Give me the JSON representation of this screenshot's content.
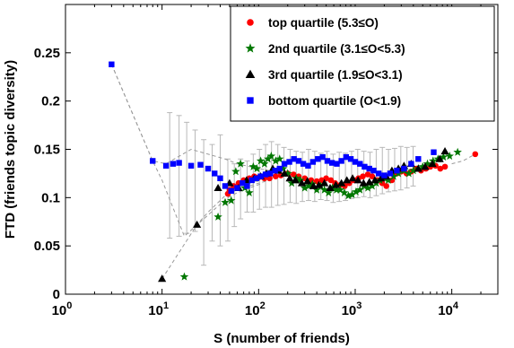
{
  "chart_data": {
    "type": "scatter",
    "xlabel": "S (number of friends)",
    "ylabel": "FTD (friends topic diversity)",
    "xscale": "log",
    "xlim": [
      1,
      30000
    ],
    "ylim": [
      0,
      0.3
    ],
    "x_ticks": [
      {
        "value": 1,
        "base": "10",
        "exp": "0"
      },
      {
        "value": 10,
        "base": "10",
        "exp": "1"
      },
      {
        "value": 100,
        "base": "10",
        "exp": "2"
      },
      {
        "value": 1000,
        "base": "10",
        "exp": "3"
      },
      {
        "value": 10000,
        "base": "10",
        "exp": "4"
      }
    ],
    "y_ticks": [
      {
        "value": 0,
        "label": "0"
      },
      {
        "value": 0.05,
        "label": "0.05"
      },
      {
        "value": 0.1,
        "label": "0.1"
      },
      {
        "value": 0.15,
        "label": "0.15"
      },
      {
        "value": 0.2,
        "label": "0.2"
      },
      {
        "value": 0.25,
        "label": "0.25"
      }
    ],
    "legend_position": "top-right",
    "series": [
      {
        "name": "top quartile (5.3≤O)",
        "marker": "circle",
        "color": "#ff0000",
        "x": [
          48,
          50,
          55,
          62,
          70,
          80,
          90,
          100,
          115,
          130,
          150,
          170,
          200,
          230,
          260,
          300,
          350,
          400,
          450,
          500,
          560,
          620,
          700,
          780,
          870,
          970,
          1080,
          1200,
          1350,
          1500,
          1700,
          1900,
          2100,
          2400,
          2700,
          3000,
          3400,
          3800,
          4300,
          4800,
          5400,
          6000,
          6800,
          7600,
          8500,
          17500
        ],
        "y": [
          0.104,
          0.108,
          0.112,
          0.115,
          0.118,
          0.12,
          0.122,
          0.121,
          0.12,
          0.12,
          0.122,
          0.123,
          0.125,
          0.124,
          0.122,
          0.12,
          0.118,
          0.117,
          0.118,
          0.12,
          0.118,
          0.115,
          0.113,
          0.112,
          0.115,
          0.118,
          0.12,
          0.122,
          0.124,
          0.122,
          0.118,
          0.115,
          0.112,
          0.118,
          0.125,
          0.127,
          0.125,
          0.127,
          0.13,
          0.128,
          0.13,
          0.132,
          0.133,
          0.13,
          0.132,
          0.145
        ]
      },
      {
        "name": "2nd quartile (3.1≤O<5.3)",
        "marker": "star",
        "color": "#007700",
        "x": [
          17,
          38,
          45,
          52,
          58,
          65,
          72,
          80,
          88,
          96,
          105,
          115,
          125,
          135,
          150,
          165,
          180,
          200,
          220,
          245,
          270,
          300,
          330,
          360,
          400,
          440,
          480,
          530,
          580,
          640,
          700,
          770,
          850,
          930,
          1020,
          1120,
          1230,
          1350,
          1500,
          1650,
          1800,
          2000,
          2200,
          2500,
          2800,
          3200,
          3600,
          4000,
          4500,
          5000,
          5600,
          6400,
          7200,
          8200,
          9500,
          11500
        ],
        "y": [
          0.018,
          0.08,
          0.095,
          0.097,
          0.127,
          0.135,
          0.11,
          0.105,
          0.132,
          0.13,
          0.138,
          0.135,
          0.14,
          0.143,
          0.138,
          0.14,
          0.13,
          0.125,
          0.115,
          0.12,
          0.118,
          0.11,
          0.112,
          0.114,
          0.108,
          0.112,
          0.108,
          0.105,
          0.11,
          0.108,
          0.108,
          0.105,
          0.102,
          0.103,
          0.106,
          0.108,
          0.112,
          0.11,
          0.112,
          0.115,
          0.118,
          0.12,
          0.118,
          0.122,
          0.125,
          0.128,
          0.125,
          0.128,
          0.13,
          0.132,
          0.135,
          0.138,
          0.14,
          0.142,
          0.143,
          0.147
        ]
      },
      {
        "name": "3rd quartile (1.9≤O<3.1)",
        "marker": "triangle",
        "color": "#000000",
        "x": [
          10,
          23,
          38,
          50,
          62,
          75,
          90,
          105,
          120,
          140,
          160,
          185,
          210,
          240,
          280,
          320,
          370,
          420,
          480,
          550,
          630,
          720,
          820,
          940,
          1070,
          1220,
          1400,
          1600,
          1850,
          2100,
          2400,
          2800,
          3200,
          3800,
          4500,
          5300,
          6300,
          7500,
          8500
        ],
        "y": [
          0.016,
          0.072,
          0.11,
          0.115,
          0.11,
          0.118,
          0.12,
          0.122,
          0.125,
          0.13,
          0.128,
          0.125,
          0.12,
          0.118,
          0.115,
          0.117,
          0.112,
          0.113,
          0.115,
          0.11,
          0.113,
          0.115,
          0.118,
          0.12,
          0.118,
          0.115,
          0.116,
          0.118,
          0.12,
          0.122,
          0.128,
          0.13,
          0.133,
          0.135,
          0.13,
          0.132,
          0.135,
          0.14,
          0.148
        ]
      },
      {
        "name": "bottom quartile (O<1.9)",
        "marker": "square",
        "color": "#0000ff",
        "x": [
          3,
          8,
          11,
          13,
          15,
          20,
          25,
          30,
          35,
          40,
          45,
          52,
          60,
          68,
          76,
          85,
          95,
          105,
          118,
          132,
          148,
          165,
          185,
          208,
          232,
          260,
          290,
          325,
          365,
          410,
          460,
          515,
          575,
          645,
          720,
          805,
          900,
          1000,
          1120,
          1250,
          1400,
          1550,
          1750,
          2000,
          2300,
          2700,
          3200,
          3800,
          4500,
          6500
        ],
        "y": [
          0.238,
          0.138,
          0.133,
          0.135,
          0.136,
          0.133,
          0.134,
          0.13,
          0.125,
          0.12,
          0.112,
          0.107,
          0.11,
          0.115,
          0.112,
          0.118,
          0.12,
          0.122,
          0.124,
          0.125,
          0.128,
          0.13,
          0.135,
          0.137,
          0.14,
          0.138,
          0.135,
          0.133,
          0.137,
          0.14,
          0.142,
          0.138,
          0.136,
          0.135,
          0.138,
          0.142,
          0.14,
          0.137,
          0.135,
          0.132,
          0.13,
          0.128,
          0.125,
          0.123,
          0.125,
          0.128,
          0.13,
          0.135,
          0.14,
          0.147
        ]
      }
    ],
    "error_bars": [
      {
        "x": 12,
        "low": 0.058,
        "high": 0.188
      },
      {
        "x": 15,
        "low": 0.06,
        "high": 0.185
      },
      {
        "x": 18,
        "low": 0.063,
        "high": 0.178
      },
      {
        "x": 22,
        "low": 0.065,
        "high": 0.17
      },
      {
        "x": 27,
        "low": 0.03,
        "high": 0.16
      },
      {
        "x": 33,
        "low": 0.055,
        "high": 0.155
      },
      {
        "x": 40,
        "low": 0.05,
        "high": 0.165
      },
      {
        "x": 48,
        "low": 0.055,
        "high": 0.14
      },
      {
        "x": 56,
        "low": 0.07,
        "high": 0.135
      },
      {
        "x": 65,
        "low": 0.078,
        "high": 0.14
      },
      {
        "x": 76,
        "low": 0.085,
        "high": 0.138
      },
      {
        "x": 88,
        "low": 0.085,
        "high": 0.145
      },
      {
        "x": 102,
        "low": 0.088,
        "high": 0.15
      },
      {
        "x": 118,
        "low": 0.09,
        "high": 0.155
      },
      {
        "x": 136,
        "low": 0.09,
        "high": 0.158
      },
      {
        "x": 158,
        "low": 0.092,
        "high": 0.155
      },
      {
        "x": 183,
        "low": 0.093,
        "high": 0.152
      },
      {
        "x": 212,
        "low": 0.095,
        "high": 0.15
      },
      {
        "x": 245,
        "low": 0.094,
        "high": 0.148
      },
      {
        "x": 284,
        "low": 0.096,
        "high": 0.147
      },
      {
        "x": 329,
        "low": 0.097,
        "high": 0.15
      },
      {
        "x": 381,
        "low": 0.096,
        "high": 0.148
      },
      {
        "x": 441,
        "low": 0.098,
        "high": 0.146
      },
      {
        "x": 510,
        "low": 0.097,
        "high": 0.148
      },
      {
        "x": 591,
        "low": 0.095,
        "high": 0.145
      },
      {
        "x": 684,
        "low": 0.096,
        "high": 0.147
      },
      {
        "x": 792,
        "low": 0.097,
        "high": 0.146
      },
      {
        "x": 917,
        "low": 0.099,
        "high": 0.148
      },
      {
        "x": 1062,
        "low": 0.1,
        "high": 0.15
      },
      {
        "x": 1230,
        "low": 0.101,
        "high": 0.148
      },
      {
        "x": 1424,
        "low": 0.1,
        "high": 0.147
      },
      {
        "x": 1650,
        "low": 0.102,
        "high": 0.15
      },
      {
        "x": 1910,
        "low": 0.104,
        "high": 0.152
      },
      {
        "x": 2212,
        "low": 0.106,
        "high": 0.15
      },
      {
        "x": 2562,
        "low": 0.107,
        "high": 0.151
      },
      {
        "x": 2966,
        "low": 0.108,
        "high": 0.153
      },
      {
        "x": 3435,
        "low": 0.11,
        "high": 0.152
      },
      {
        "x": 3978,
        "low": 0.112,
        "high": 0.153
      }
    ],
    "trend_lines": [
      {
        "x": [
          3,
          8,
          10,
          17,
          25,
          35,
          48,
          60,
          80,
          110
        ],
        "y": [
          0.238,
          0.138,
          0.118,
          0.06,
          0.075,
          0.088,
          0.1,
          0.105,
          0.11,
          0.115
        ]
      },
      {
        "x": [
          10,
          23,
          30,
          45,
          60,
          80,
          100,
          130
        ],
        "y": [
          0.016,
          0.072,
          0.085,
          0.102,
          0.108,
          0.112,
          0.115,
          0.118
        ]
      },
      {
        "x": [
          3,
          8,
          11,
          20,
          45,
          60,
          100,
          130
        ],
        "y": [
          0.238,
          0.138,
          0.135,
          0.15,
          0.14,
          0.135,
          0.13,
          0.128
        ]
      },
      {
        "x": [
          10000,
          13000,
          17500
        ],
        "y": [
          0.135,
          0.138,
          0.145
        ]
      }
    ]
  }
}
